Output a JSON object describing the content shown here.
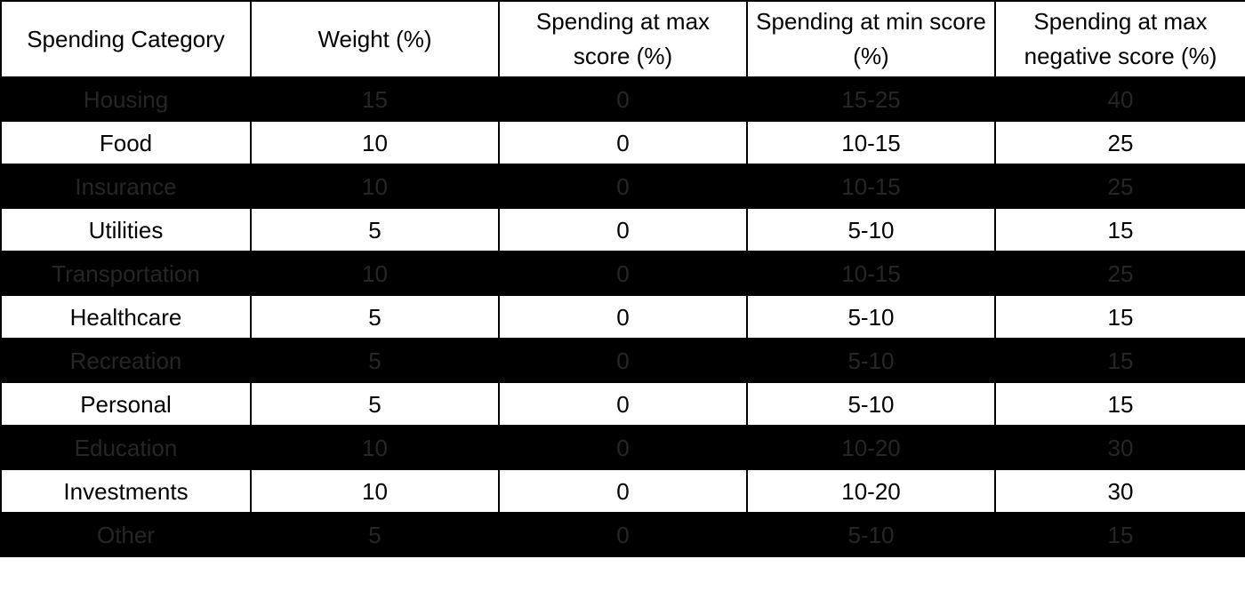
{
  "table": {
    "headers": [
      "Spending Category",
      "Weight (%)",
      "Spending at max score (%)",
      "Spending at min score (%)",
      "Spending at max negative score (%)"
    ],
    "rows": [
      {
        "style": "dark",
        "cells": [
          "Housing",
          "15",
          "0",
          "15-25",
          "40"
        ]
      },
      {
        "style": "light",
        "cells": [
          "Food",
          "10",
          "0",
          "10-15",
          "25"
        ]
      },
      {
        "style": "dark",
        "cells": [
          "Insurance",
          "10",
          "0",
          "10-15",
          "25"
        ]
      },
      {
        "style": "light",
        "cells": [
          "Utilities",
          "5",
          "0",
          "5-10",
          "15"
        ]
      },
      {
        "style": "dark",
        "cells": [
          "Transportation",
          "10",
          "0",
          "10-15",
          "25"
        ]
      },
      {
        "style": "light",
        "cells": [
          "Healthcare",
          "5",
          "0",
          "5-10",
          "15"
        ]
      },
      {
        "style": "dark",
        "cells": [
          "Recreation",
          "5",
          "0",
          "5-10",
          "15"
        ]
      },
      {
        "style": "light",
        "cells": [
          "Personal",
          "5",
          "0",
          "5-10",
          "15"
        ]
      },
      {
        "style": "dark",
        "cells": [
          "Education",
          "10",
          "0",
          "10-20",
          "30"
        ]
      },
      {
        "style": "light",
        "cells": [
          "Investments",
          "10",
          "0",
          "10-20",
          "30"
        ]
      },
      {
        "style": "dark",
        "cells": [
          "Other",
          "5",
          "0",
          "5-10",
          "15"
        ]
      }
    ]
  }
}
